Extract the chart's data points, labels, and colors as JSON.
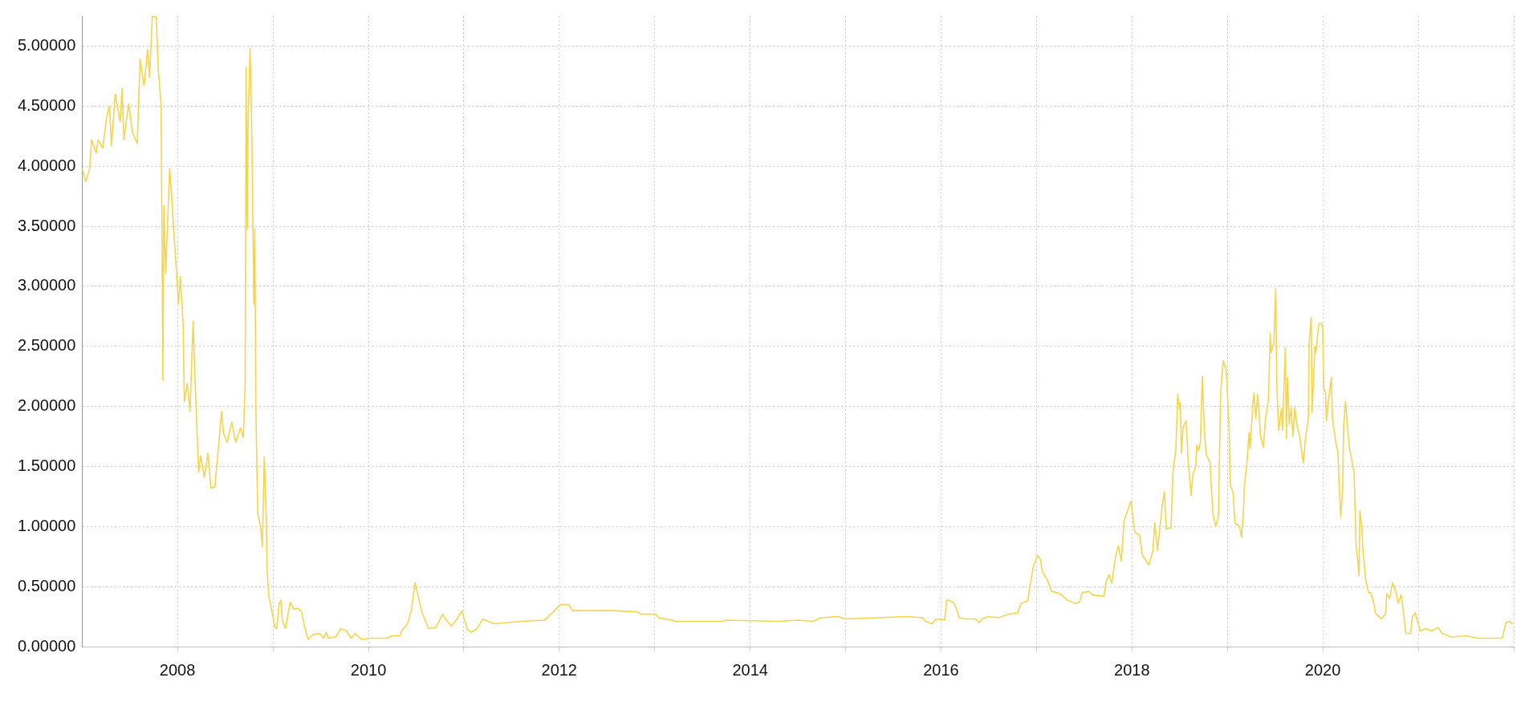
{
  "chart_data": {
    "type": "line",
    "marker": "none",
    "grid": true,
    "color": "#f5d54a",
    "xlim": [
      "2007-01-01",
      "2022-01-01"
    ],
    "xticks": [
      "2008",
      {
        "value": "2009",
        "label": null
      },
      "2010",
      {
        "value": "2011",
        "label": null
      },
      "2012",
      {
        "value": "2013",
        "label": null
      },
      "2014",
      {
        "value": "2015",
        "label": null
      },
      "2016",
      {
        "value": "2017",
        "label": null
      },
      "2018",
      {
        "value": "2019",
        "label": null
      },
      "2020",
      {
        "value": "2021",
        "label": null
      },
      {
        "value": "2022",
        "label": null
      }
    ],
    "ylim": [
      0,
      5.25
    ],
    "yticks": [
      {
        "value": 0,
        "label": "0.00000"
      },
      {
        "value": 0.5,
        "label": "0.50000"
      },
      {
        "value": 1,
        "label": "1.00000"
      },
      {
        "value": 1.5,
        "label": "1.50000"
      },
      {
        "value": 2,
        "label": "2.00000"
      },
      {
        "value": 2.5,
        "label": "2.50000"
      },
      {
        "value": 3,
        "label": "3.00000"
      },
      {
        "value": 3.5,
        "label": "3.50000"
      },
      {
        "value": 4,
        "label": "4.00000"
      },
      {
        "value": 4.5,
        "label": "4.50000"
      },
      {
        "value": 5,
        "label": "5.00000"
      }
    ],
    "x": [
      "2007-01-01",
      "2007-01-15",
      "2007-01-30",
      "2007-02-06",
      "2007-02-24",
      "2007-03-03",
      "2007-03-21",
      "2007-04-05",
      "2007-04-16",
      "2007-04-23",
      "2007-05-08",
      "2007-05-27",
      "2007-06-03",
      "2007-06-10",
      "2007-06-28",
      "2007-07-13",
      "2007-07-31",
      "2007-08-11",
      "2007-08-26",
      "2007-09-09",
      "2007-09-16",
      "2007-09-27",
      "2007-10-12",
      "2007-10-19",
      "2007-10-30",
      "2007-11-03",
      "2007-11-06",
      "2007-11-10",
      "2007-11-17",
      "2007-12-02",
      "2007-12-09",
      "2007-12-16",
      "2007-12-24",
      "2008-01-05",
      "2008-01-12",
      "2008-01-23",
      "2008-01-27",
      "2008-02-07",
      "2008-02-18",
      "2008-03-01",
      "2008-03-07",
      "2008-03-14",
      "2008-03-22",
      "2008-03-29",
      "2008-04-13",
      "2008-04-27",
      "2008-05-08",
      "2008-05-23",
      "2008-06-03",
      "2008-06-18",
      "2008-06-25",
      "2008-07-09",
      "2008-07-27",
      "2008-08-11",
      "2008-08-29",
      "2008-09-09",
      "2008-09-16",
      "2008-09-20",
      "2008-09-24",
      "2008-09-27",
      "2008-10-05",
      "2008-10-12",
      "2008-10-19",
      "2008-10-23",
      "2008-10-27",
      "2008-11-03",
      "2008-11-14",
      "2008-11-21",
      "2008-11-28",
      "2008-12-06",
      "2008-12-09",
      "2008-12-16",
      "2008-12-27",
      "2009-01-08",
      "2009-01-15",
      "2009-01-23",
      "2009-01-30",
      "2009-02-06",
      "2009-02-17",
      "2009-02-24",
      "2009-03-07",
      "2009-03-22",
      "2009-04-05",
      "2009-04-20",
      "2009-05-01",
      "2009-05-15",
      "2009-06-03",
      "2009-06-28",
      "2009-07-13",
      "2009-07-24",
      "2009-07-31",
      "2009-08-29",
      "2009-09-16",
      "2009-10-08",
      "2009-10-27",
      "2009-11-10",
      "2009-12-06",
      "2010-01-05",
      "2010-03-14",
      "2010-04-02",
      "2010-05-01",
      "2010-05-08",
      "2010-05-30",
      "2010-06-14",
      "2010-06-28",
      "2010-07-09",
      "2010-07-24",
      "2010-08-19",
      "2010-09-16",
      "2010-10-12",
      "2010-10-23",
      "2010-11-14",
      "2010-12-06",
      "2010-12-24",
      "2011-01-15",
      "2011-01-30",
      "2011-02-21",
      "2011-03-14",
      "2011-04-27",
      "2011-06-14",
      "2011-08-11",
      "2011-11-06",
      "2011-12-09",
      "2012-01-05",
      "2012-02-07",
      "2012-02-21",
      "2012-07-20",
      "2012-10-27",
      "2012-11-07",
      "2013-01-05",
      "2013-01-15",
      "2013-03-07",
      "2013-03-22",
      "2013-09-20",
      "2013-09-27",
      "2014-04-20",
      "2014-07-05",
      "2014-08-29",
      "2014-09-27",
      "2014-12-02",
      "2015-01-01",
      "2015-08-29",
      "2015-10-23",
      "2015-11-03",
      "2015-11-28",
      "2015-12-13",
      "2016-01-15",
      "2016-01-23",
      "2016-02-17",
      "2016-02-28",
      "2016-03-11",
      "2016-04-01",
      "2016-05-12",
      "2016-05-27",
      "2016-06-07",
      "2016-06-28",
      "2016-08-08",
      "2016-09-16",
      "2016-10-19",
      "2016-11-03",
      "2016-11-28",
      "2016-12-06",
      "2016-12-20",
      "2017-01-05",
      "2017-01-15",
      "2017-01-23",
      "2017-02-10",
      "2017-02-28",
      "2017-04-01",
      "2017-04-27",
      "2017-05-27",
      "2017-06-14",
      "2017-06-25",
      "2017-07-20",
      "2017-08-04",
      "2017-09-16",
      "2017-09-24",
      "2017-10-05",
      "2017-10-16",
      "2017-10-30",
      "2017-11-10",
      "2017-11-21",
      "2017-12-02",
      "2017-12-28",
      "2018-01-12",
      "2018-01-30",
      "2018-02-10",
      "2018-03-07",
      "2018-03-22",
      "2018-03-29",
      "2018-04-09",
      "2018-04-27",
      "2018-05-05",
      "2018-05-12",
      "2018-05-30",
      "2018-06-07",
      "2018-06-18",
      "2018-06-25",
      "2018-07-02",
      "2018-07-05",
      "2018-07-09",
      "2018-07-16",
      "2018-07-27",
      "2018-08-04",
      "2018-08-15",
      "2018-08-22",
      "2018-09-02",
      "2018-09-06",
      "2018-09-13",
      "2018-09-20",
      "2018-09-27",
      "2018-10-05",
      "2018-10-12",
      "2018-10-27",
      "2018-10-30",
      "2018-11-07",
      "2018-11-18",
      "2018-11-28",
      "2018-12-06",
      "2018-12-13",
      "2018-12-17",
      "2018-12-28",
      "2019-01-08",
      "2019-01-12",
      "2019-01-23",
      "2019-01-30",
      "2019-02-17",
      "2019-02-24",
      "2019-03-03",
      "2019-03-07",
      "2019-03-18",
      "2019-03-25",
      "2019-03-29",
      "2019-04-09",
      "2019-04-13",
      "2019-04-20",
      "2019-04-27",
      "2019-05-08",
      "2019-05-19",
      "2019-05-27",
      "2019-06-07",
      "2019-06-14",
      "2019-06-18",
      "2019-06-28",
      "2019-07-05",
      "2019-07-09",
      "2019-07-16",
      "2019-07-27",
      "2019-07-31",
      "2019-08-11",
      "2019-08-15",
      "2019-08-19",
      "2019-08-26",
      "2019-09-02",
      "2019-09-09",
      "2019-09-16",
      "2019-09-24",
      "2019-10-05",
      "2019-10-12",
      "2019-10-19",
      "2019-10-27",
      "2019-11-07",
      "2019-11-10",
      "2019-11-18",
      "2019-11-21",
      "2019-12-02",
      "2019-12-06",
      "2019-12-17",
      "2019-12-28",
      "2020-01-01",
      "2020-01-05",
      "2020-01-12",
      "2020-01-15",
      "2020-01-23",
      "2020-02-03",
      "2020-02-07",
      "2020-02-17",
      "2020-02-21",
      "2020-02-28",
      "2020-03-03",
      "2020-03-10",
      "2020-03-17",
      "2020-03-21",
      "2020-03-28",
      "2020-04-05",
      "2020-04-12",
      "2020-04-19",
      "2020-04-30",
      "2020-05-04",
      "2020-05-08",
      "2020-05-15",
      "2020-05-19",
      "2020-05-22",
      "2020-05-30",
      "2020-06-03",
      "2020-06-14",
      "2020-06-24",
      "2020-07-02",
      "2020-07-12",
      "2020-07-20",
      "2020-08-14",
      "2020-08-29",
      "2020-09-02",
      "2020-09-13",
      "2020-09-24",
      "2020-10-08",
      "2020-10-15",
      "2020-10-27",
      "2020-11-07",
      "2020-11-14",
      "2020-12-02",
      "2020-12-09",
      "2020-12-20",
      "2021-01-08",
      "2021-01-30",
      "2021-02-21",
      "2021-03-18",
      "2021-04-01",
      "2021-05-08",
      "2021-07-02",
      "2021-08-19",
      "2021-11-18",
      "2021-12-02",
      "2021-12-17",
      "2021-12-28"
    ],
    "values": [
      3.98,
      3.87,
      3.98,
      4.22,
      4.11,
      4.22,
      4.15,
      4.41,
      4.5,
      4.17,
      4.6,
      4.37,
      4.65,
      4.22,
      4.52,
      4.28,
      4.19,
      4.89,
      4.67,
      4.97,
      4.74,
      5.25,
      5.24,
      4.82,
      4.52,
      3.41,
      2.22,
      3.67,
      3.11,
      3.98,
      3.78,
      3.52,
      3.26,
      2.85,
      3.08,
      2.67,
      2.04,
      2.19,
      1.96,
      2.71,
      2.3,
      1.89,
      1.45,
      1.59,
      1.41,
      1.61,
      1.32,
      1.33,
      1.59,
      1.96,
      1.78,
      1.7,
      1.87,
      1.7,
      1.82,
      1.74,
      2.19,
      4.82,
      3.48,
      4.34,
      4.98,
      4.19,
      2.85,
      3.48,
      2.0,
      1.11,
      1.0,
      0.83,
      1.58,
      1.07,
      0.63,
      0.41,
      0.3,
      0.16,
      0.15,
      0.34,
      0.39,
      0.21,
      0.15,
      0.23,
      0.37,
      0.31,
      0.32,
      0.29,
      0.17,
      0.06,
      0.1,
      0.11,
      0.07,
      0.12,
      0.07,
      0.08,
      0.15,
      0.13,
      0.07,
      0.11,
      0.06,
      0.07,
      0.07,
      0.09,
      0.09,
      0.13,
      0.19,
      0.3,
      0.53,
      0.43,
      0.29,
      0.15,
      0.16,
      0.27,
      0.23,
      0.17,
      0.23,
      0.3,
      0.14,
      0.12,
      0.15,
      0.23,
      0.19,
      0.2,
      0.21,
      0.22,
      0.29,
      0.35,
      0.35,
      0.3,
      0.3,
      0.29,
      0.27,
      0.27,
      0.24,
      0.22,
      0.21,
      0.21,
      0.22,
      0.21,
      0.22,
      0.21,
      0.24,
      0.25,
      0.23,
      0.25,
      0.24,
      0.21,
      0.19,
      0.23,
      0.22,
      0.39,
      0.37,
      0.32,
      0.24,
      0.23,
      0.23,
      0.2,
      0.23,
      0.25,
      0.24,
      0.27,
      0.28,
      0.36,
      0.38,
      0.5,
      0.67,
      0.76,
      0.73,
      0.62,
      0.56,
      0.46,
      0.44,
      0.39,
      0.36,
      0.37,
      0.45,
      0.46,
      0.43,
      0.42,
      0.54,
      0.6,
      0.53,
      0.75,
      0.84,
      0.71,
      1.05,
      1.21,
      0.95,
      0.93,
      0.76,
      0.68,
      0.8,
      1.03,
      0.8,
      1.18,
      1.29,
      0.98,
      0.99,
      1.45,
      1.65,
      2.1,
      1.98,
      2.03,
      1.61,
      1.83,
      1.88,
      1.55,
      1.26,
      1.43,
      1.5,
      1.68,
      1.63,
      1.7,
      2.25,
      1.8,
      1.6,
      1.53,
      1.38,
      1.1,
      1.0,
      1.09,
      2.1,
      2.3,
      2.38,
      2.3,
      1.8,
      1.35,
      1.28,
      1.03,
      1.0,
      0.91,
      1.1,
      1.33,
      1.56,
      1.78,
      1.65,
      2.03,
      2.11,
      1.9,
      2.1,
      1.75,
      1.66,
      1.9,
      2.05,
      2.61,
      2.45,
      2.53,
      2.98,
      2.2,
      1.8,
      1.98,
      1.8,
      2.49,
      1.73,
      2.24,
      1.85,
      1.99,
      1.75,
      1.99,
      1.85,
      1.75,
      1.63,
      1.53,
      1.74,
      1.9,
      2.53,
      2.74,
      1.95,
      2.5,
      2.45,
      2.69,
      2.69,
      2.65,
      2.15,
      2.11,
      1.88,
      2.05,
      2.24,
      1.9,
      1.75,
      1.68,
      1.63,
      1.38,
      1.08,
      1.3,
      1.83,
      2.04,
      1.83,
      1.65,
      1.58,
      1.45,
      1.13,
      0.83,
      0.7,
      0.59,
      1.13,
      0.98,
      0.8,
      0.55,
      0.45,
      0.45,
      0.39,
      0.28,
      0.23,
      0.28,
      0.44,
      0.4,
      0.53,
      0.45,
      0.36,
      0.43,
      0.25,
      0.11,
      0.11,
      0.25,
      0.28,
      0.13,
      0.15,
      0.13,
      0.16,
      0.11,
      0.08,
      0.09,
      0.07,
      0.07,
      0.2,
      0.21,
      0.19
    ]
  }
}
